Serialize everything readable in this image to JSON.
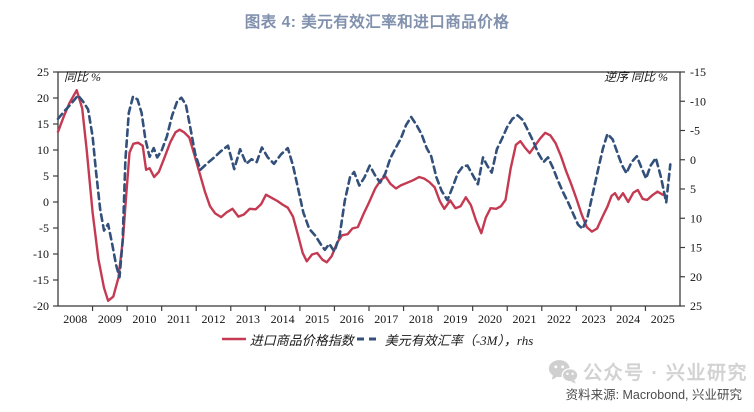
{
  "title": "图表 4: 美元有效汇率和进口商品价格",
  "colors": {
    "title": "#8191ad",
    "axis": "#3d3d3d",
    "tick_text": "#141414",
    "red_series": "#c43a52",
    "blue_series": "#33507a",
    "source_text": "#4c4c4c",
    "watermark": "#c2c2c2"
  },
  "source": "资料来源: Macrobond, 兴业研究",
  "watermark": {
    "icon": "wechat-icon",
    "text": "公众号 · 兴业研究"
  },
  "chart_data": {
    "type": "line",
    "title": "图表 4: 美元有效汇率和进口商品价格",
    "grid": false,
    "legend_position": "bottom",
    "x_axis": {
      "range": [
        2008,
        2026
      ],
      "years": [
        2008,
        2009,
        2010,
        2011,
        2012,
        2013,
        2014,
        2015,
        2016,
        2017,
        2018,
        2019,
        2020,
        2021,
        2022,
        2023,
        2024,
        2025
      ]
    },
    "left_axis": {
      "label": "同比 %",
      "range": [
        25,
        -20
      ],
      "ticks": [
        25,
        20,
        15,
        10,
        5,
        0,
        -5,
        -10,
        -15,
        -20
      ]
    },
    "right_axis": {
      "label": "逆序 同比 %",
      "range": [
        -15,
        25
      ],
      "reversed": true,
      "ticks": [
        -15,
        -10,
        -5,
        0,
        5,
        10,
        15,
        20,
        25
      ]
    },
    "series": [
      {
        "name": "进口商品价格指数",
        "axis": "left",
        "style": "solid",
        "color": "#c43a52",
        "points": [
          [
            2008.0,
            13.5
          ],
          [
            2008.17,
            16.5
          ],
          [
            2008.33,
            19
          ],
          [
            2008.54,
            21.5
          ],
          [
            2008.7,
            18
          ],
          [
            2008.83,
            10
          ],
          [
            2009.0,
            -2
          ],
          [
            2009.17,
            -11
          ],
          [
            2009.33,
            -16.5
          ],
          [
            2009.45,
            -19
          ],
          [
            2009.6,
            -18.2
          ],
          [
            2009.75,
            -14.5
          ],
          [
            2009.88,
            -7
          ],
          [
            2009.97,
            1
          ],
          [
            2010.07,
            9.5
          ],
          [
            2010.18,
            11.2
          ],
          [
            2010.32,
            11.4
          ],
          [
            2010.45,
            10.8
          ],
          [
            2010.55,
            6.2
          ],
          [
            2010.65,
            6.5
          ],
          [
            2010.78,
            4.8
          ],
          [
            2010.92,
            5.8
          ],
          [
            2011.08,
            8.5
          ],
          [
            2011.25,
            11.5
          ],
          [
            2011.4,
            13.4
          ],
          [
            2011.52,
            13.9
          ],
          [
            2011.65,
            13.4
          ],
          [
            2011.8,
            12.4
          ],
          [
            2011.95,
            9
          ],
          [
            2012.1,
            5.5
          ],
          [
            2012.25,
            2
          ],
          [
            2012.4,
            -0.8
          ],
          [
            2012.55,
            -2.2
          ],
          [
            2012.72,
            -2.9
          ],
          [
            2012.88,
            -2
          ],
          [
            2013.05,
            -1.3
          ],
          [
            2013.22,
            -2.8
          ],
          [
            2013.38,
            -2.4
          ],
          [
            2013.55,
            -1.3
          ],
          [
            2013.72,
            -1.4
          ],
          [
            2013.88,
            -0.4
          ],
          [
            2014.02,
            1.4
          ],
          [
            2014.18,
            0.8
          ],
          [
            2014.35,
            0.2
          ],
          [
            2014.5,
            -0.5
          ],
          [
            2014.65,
            -1.1
          ],
          [
            2014.8,
            -2.8
          ],
          [
            2014.95,
            -6.5
          ],
          [
            2015.08,
            -9.8
          ],
          [
            2015.2,
            -11.4
          ],
          [
            2015.35,
            -10.1
          ],
          [
            2015.5,
            -9.8
          ],
          [
            2015.65,
            -11.1
          ],
          [
            2015.78,
            -11.6
          ],
          [
            2015.92,
            -10.4
          ],
          [
            2016.08,
            -7.8
          ],
          [
            2016.22,
            -6.4
          ],
          [
            2016.38,
            -6.2
          ],
          [
            2016.52,
            -5.1
          ],
          [
            2016.68,
            -4.8
          ],
          [
            2016.85,
            -2.2
          ],
          [
            2017.0,
            -0.1
          ],
          [
            2017.18,
            2.6
          ],
          [
            2017.35,
            4.3
          ],
          [
            2017.48,
            4.9
          ],
          [
            2017.62,
            3.5
          ],
          [
            2017.78,
            2.6
          ],
          [
            2017.92,
            3.2
          ],
          [
            2018.1,
            3.7
          ],
          [
            2018.28,
            4.2
          ],
          [
            2018.45,
            4.8
          ],
          [
            2018.6,
            4.5
          ],
          [
            2018.75,
            3.8
          ],
          [
            2018.9,
            2.8
          ],
          [
            2019.05,
            0.2
          ],
          [
            2019.18,
            -1.3
          ],
          [
            2019.35,
            0.3
          ],
          [
            2019.5,
            -1.2
          ],
          [
            2019.65,
            -0.8
          ],
          [
            2019.8,
            0.9
          ],
          [
            2019.95,
            -0.6
          ],
          [
            2020.1,
            -3.6
          ],
          [
            2020.25,
            -6
          ],
          [
            2020.38,
            -3
          ],
          [
            2020.52,
            -1.2
          ],
          [
            2020.68,
            -1.3
          ],
          [
            2020.82,
            -0.8
          ],
          [
            2020.95,
            0.4
          ],
          [
            2021.1,
            6.5
          ],
          [
            2021.25,
            11
          ],
          [
            2021.38,
            11.7
          ],
          [
            2021.52,
            10.4
          ],
          [
            2021.65,
            9.4
          ],
          [
            2021.8,
            10.8
          ],
          [
            2021.95,
            12.2
          ],
          [
            2022.1,
            13.3
          ],
          [
            2022.25,
            12.8
          ],
          [
            2022.4,
            11.3
          ],
          [
            2022.55,
            8.9
          ],
          [
            2022.7,
            6
          ],
          [
            2022.85,
            3.5
          ],
          [
            2023.0,
            0.7
          ],
          [
            2023.15,
            -2.3
          ],
          [
            2023.3,
            -4.8
          ],
          [
            2023.45,
            -5.7
          ],
          [
            2023.6,
            -5.1
          ],
          [
            2023.75,
            -2.9
          ],
          [
            2023.9,
            -0.9
          ],
          [
            2024.02,
            1.2
          ],
          [
            2024.12,
            1.7
          ],
          [
            2024.22,
            0.5
          ],
          [
            2024.35,
            1.7
          ],
          [
            2024.5,
            0
          ],
          [
            2024.65,
            1.8
          ],
          [
            2024.78,
            2.3
          ],
          [
            2024.92,
            0.6
          ],
          [
            2025.05,
            0.4
          ],
          [
            2025.2,
            1.3
          ],
          [
            2025.35,
            2
          ],
          [
            2025.5,
            1.4
          ]
        ]
      },
      {
        "name": "美元有效汇率（-3M），rhs",
        "axis": "right",
        "style": "dashed",
        "color": "#33507a",
        "points": [
          [
            2008.0,
            -7
          ],
          [
            2008.2,
            -8.4
          ],
          [
            2008.4,
            -9.7
          ],
          [
            2008.58,
            -11
          ],
          [
            2008.72,
            -10
          ],
          [
            2008.87,
            -8.6
          ],
          [
            2009.0,
            -4
          ],
          [
            2009.1,
            2
          ],
          [
            2009.22,
            8.5
          ],
          [
            2009.33,
            12.1
          ],
          [
            2009.45,
            11
          ],
          [
            2009.57,
            14.5
          ],
          [
            2009.68,
            18
          ],
          [
            2009.78,
            20.1
          ],
          [
            2009.87,
            14
          ],
          [
            2009.95,
            0
          ],
          [
            2010.05,
            -8
          ],
          [
            2010.17,
            -10.8
          ],
          [
            2010.3,
            -10.3
          ],
          [
            2010.42,
            -8
          ],
          [
            2010.53,
            -3.5
          ],
          [
            2010.65,
            -0.5
          ],
          [
            2010.77,
            -2
          ],
          [
            2010.87,
            -0.4
          ],
          [
            2011.0,
            -1.6
          ],
          [
            2011.15,
            -4
          ],
          [
            2011.3,
            -7.5
          ],
          [
            2011.45,
            -10
          ],
          [
            2011.57,
            -10.6
          ],
          [
            2011.7,
            -9.4
          ],
          [
            2011.83,
            -5.5
          ],
          [
            2011.97,
            -1
          ],
          [
            2012.12,
            1.7
          ],
          [
            2012.32,
            0.6
          ],
          [
            2012.52,
            -0.4
          ],
          [
            2012.72,
            -1.5
          ],
          [
            2012.92,
            -2.4
          ],
          [
            2013.1,
            1.6
          ],
          [
            2013.27,
            -1.8
          ],
          [
            2013.45,
            0.7
          ],
          [
            2013.6,
            -0.1
          ],
          [
            2013.75,
            0.4
          ],
          [
            2013.9,
            -2.1
          ],
          [
            2014.07,
            -0.4
          ],
          [
            2014.25,
            0.7
          ],
          [
            2014.45,
            -0.9
          ],
          [
            2014.65,
            -2
          ],
          [
            2014.8,
            1
          ],
          [
            2014.95,
            5
          ],
          [
            2015.1,
            9
          ],
          [
            2015.27,
            11.8
          ],
          [
            2015.45,
            13
          ],
          [
            2015.6,
            14.4
          ],
          [
            2015.72,
            15.4
          ],
          [
            2015.85,
            14.4
          ],
          [
            2016.0,
            15.7
          ],
          [
            2016.15,
            13
          ],
          [
            2016.3,
            7
          ],
          [
            2016.45,
            3
          ],
          [
            2016.57,
            2.1
          ],
          [
            2016.72,
            4.4
          ],
          [
            2016.87,
            3
          ],
          [
            2017.02,
            1
          ],
          [
            2017.17,
            2.6
          ],
          [
            2017.32,
            3.9
          ],
          [
            2017.47,
            2.4
          ],
          [
            2017.62,
            -0.3
          ],
          [
            2017.77,
            -2
          ],
          [
            2017.92,
            -3.6
          ],
          [
            2018.07,
            -5.9
          ],
          [
            2018.22,
            -7.3
          ],
          [
            2018.37,
            -6
          ],
          [
            2018.52,
            -4.4
          ],
          [
            2018.67,
            -2
          ],
          [
            2018.8,
            -0.6
          ],
          [
            2018.95,
            3
          ],
          [
            2019.1,
            5.3
          ],
          [
            2019.27,
            6.9
          ],
          [
            2019.42,
            4.7
          ],
          [
            2019.57,
            2.3
          ],
          [
            2019.72,
            1.1
          ],
          [
            2019.85,
            1
          ],
          [
            2020.0,
            2.6
          ],
          [
            2020.15,
            4.2
          ],
          [
            2020.3,
            -0.4
          ],
          [
            2020.42,
            1
          ],
          [
            2020.55,
            2.2
          ],
          [
            2020.7,
            -1.8
          ],
          [
            2020.85,
            -3.6
          ],
          [
            2021.0,
            -5.6
          ],
          [
            2021.15,
            -7
          ],
          [
            2021.3,
            -7.6
          ],
          [
            2021.45,
            -6.8
          ],
          [
            2021.6,
            -5
          ],
          [
            2021.75,
            -3.2
          ],
          [
            2021.9,
            -1.1
          ],
          [
            2022.05,
            0.4
          ],
          [
            2022.18,
            -0.4
          ],
          [
            2022.32,
            1.3
          ],
          [
            2022.47,
            3.6
          ],
          [
            2022.62,
            5.6
          ],
          [
            2022.77,
            7.4
          ],
          [
            2022.92,
            9.4
          ],
          [
            2023.05,
            11.1
          ],
          [
            2023.18,
            11.8
          ],
          [
            2023.32,
            9.9
          ],
          [
            2023.47,
            5.9
          ],
          [
            2023.62,
            1.9
          ],
          [
            2023.77,
            -1.9
          ],
          [
            2023.9,
            -4.4
          ],
          [
            2024.05,
            -3.5
          ],
          [
            2024.2,
            -1
          ],
          [
            2024.32,
            0.9
          ],
          [
            2024.45,
            2.3
          ],
          [
            2024.6,
            0.4
          ],
          [
            2024.75,
            -0.6
          ],
          [
            2024.9,
            1.6
          ],
          [
            2025.02,
            3.2
          ],
          [
            2025.15,
            1
          ],
          [
            2025.3,
            -0.3
          ],
          [
            2025.45,
            3
          ],
          [
            2025.6,
            7.3
          ],
          [
            2025.72,
            0.8
          ]
        ]
      }
    ]
  }
}
